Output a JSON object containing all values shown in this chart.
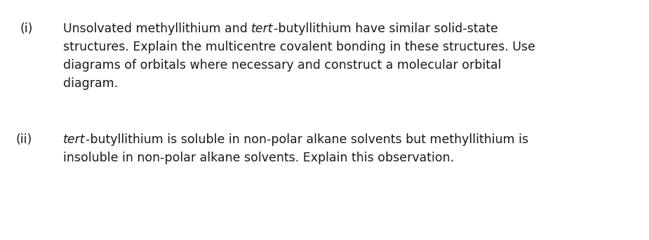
{
  "background_color": "#ffffff",
  "text_color": "#1a1a1a",
  "font_size": 12.5,
  "font_family": "DejaVu Sans",
  "fig_width": 9.25,
  "fig_height": 3.42,
  "dpi": 100,
  "label_i": "(i)",
  "label_ii": "(ii)",
  "part_i_lines": [
    [
      {
        "text": "Unsolvated methyllithium and ",
        "style": "normal"
      },
      {
        "text": "tert",
        "style": "italic"
      },
      {
        "text": "-butyllithium have similar solid-state",
        "style": "normal"
      }
    ],
    [
      {
        "text": "structures. Explain the multicentre covalent bonding in these structures. Use",
        "style": "normal"
      }
    ],
    [
      {
        "text": "diagrams of orbitals where necessary and construct a molecular orbital",
        "style": "normal"
      }
    ],
    [
      {
        "text": "diagram.",
        "style": "normal"
      }
    ]
  ],
  "part_ii_lines": [
    [
      {
        "text": "tert",
        "style": "italic"
      },
      {
        "text": "-butyllithium is soluble in non-polar alkane solvents but methyllithium is",
        "style": "normal"
      }
    ],
    [
      {
        "text": "insoluble in non-polar alkane solvents. Explain this observation.",
        "style": "normal"
      }
    ]
  ]
}
